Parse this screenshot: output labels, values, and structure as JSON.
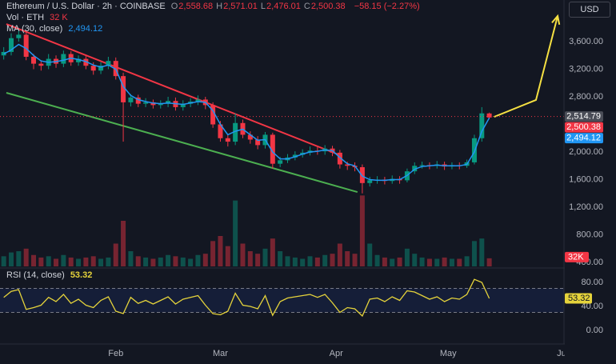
{
  "chart_data": [
    {
      "type": "candlestick",
      "title": "Ethereum / U.S. Dollar · 2h · COINBASE",
      "ohlc_legend": [
        {
          "key": "O",
          "value": "2,558.68"
        },
        {
          "key": "H",
          "value": "2,571.01"
        },
        {
          "key": "L",
          "value": "2,476.01"
        },
        {
          "key": "C",
          "value": "2,500.38"
        }
      ],
      "change": "−58.15 (−2.27%)",
      "currency": "USD",
      "x": [
        2,
        4,
        6,
        8,
        10,
        12,
        14,
        16,
        18,
        20,
        22,
        24,
        26,
        28,
        30,
        32,
        34,
        36,
        38,
        40,
        42,
        44,
        46,
        48,
        50,
        52,
        54,
        56,
        58,
        60,
        62,
        64,
        66,
        68,
        70,
        72,
        74,
        76,
        78,
        80,
        82,
        84,
        86,
        88,
        90,
        92,
        94,
        96,
        98,
        100,
        102,
        104,
        106,
        108,
        110,
        112,
        114,
        116,
        118,
        120,
        122,
        124,
        126,
        128,
        130,
        132
      ],
      "open": [
        3400,
        3450,
        3650,
        3700,
        3380,
        3280,
        3250,
        3350,
        3280,
        3420,
        3300,
        3350,
        3250,
        3180,
        3250,
        3320,
        3100,
        2720,
        2790,
        2700,
        2720,
        2680,
        2700,
        2740,
        2650,
        2700,
        2730,
        2760,
        2680,
        2400,
        2200,
        2150,
        2420,
        2250,
        2180,
        2100,
        2250,
        1830,
        1880,
        1920,
        1960,
        1990,
        2020,
        2010,
        2050,
        1990,
        1820,
        1800,
        1780,
        1550,
        1590,
        1600,
        1580,
        1610,
        1590,
        1720,
        1800,
        1810,
        1800,
        1820,
        1790,
        1810,
        1800,
        1850,
        2200,
        2558.68
      ],
      "high": [
        3520,
        3720,
        3760,
        3740,
        3420,
        3330,
        3420,
        3400,
        3470,
        3460,
        3400,
        3390,
        3300,
        3300,
        3380,
        3370,
        3150,
        2840,
        2830,
        2780,
        2760,
        2750,
        2800,
        2790,
        2750,
        2780,
        2820,
        2800,
        2720,
        2450,
        2260,
        2560,
        2470,
        2300,
        2230,
        2290,
        2280,
        1930,
        1970,
        2010,
        2040,
        2080,
        2070,
        2100,
        2090,
        2030,
        1860,
        1850,
        1820,
        1640,
        1650,
        1640,
        1660,
        1650,
        1760,
        1850,
        1860,
        1850,
        1870,
        1860,
        1850,
        1850,
        1890,
        2250,
        2650,
        2571.01
      ],
      "low": [
        3340,
        3400,
        3600,
        3330,
        3200,
        3180,
        3200,
        3220,
        3230,
        3250,
        3250,
        3200,
        3120,
        3130,
        3200,
        3050,
        2150,
        2660,
        2650,
        2650,
        2630,
        2630,
        2650,
        2600,
        2600,
        2650,
        2680,
        2620,
        2350,
        2150,
        2080,
        2100,
        2200,
        2120,
        2040,
        2050,
        1760,
        1780,
        1840,
        1880,
        1920,
        1950,
        1960,
        1960,
        1940,
        1760,
        1740,
        1720,
        1400,
        1500,
        1540,
        1530,
        1540,
        1540,
        1560,
        1680,
        1760,
        1750,
        1760,
        1740,
        1750,
        1750,
        1770,
        1820,
        2150,
        2476.01
      ],
      "close": [
        3450,
        3650,
        3700,
        3380,
        3280,
        3250,
        3350,
        3280,
        3420,
        3300,
        3350,
        3250,
        3180,
        3250,
        3320,
        3100,
        2720,
        2790,
        2700,
        2720,
        2680,
        2700,
        2740,
        2650,
        2700,
        2730,
        2760,
        2680,
        2400,
        2200,
        2150,
        2420,
        2250,
        2180,
        2100,
        2250,
        1830,
        1880,
        1920,
        1960,
        1990,
        2020,
        2010,
        2050,
        1990,
        1820,
        1800,
        1780,
        1550,
        1590,
        1600,
        1580,
        1610,
        1590,
        1720,
        1800,
        1810,
        1800,
        1820,
        1790,
        1810,
        1800,
        1850,
        2200,
        2560,
        2500.38
      ],
      "up_color": "#089981",
      "down_color": "#f23645",
      "series": [
        {
          "name": "MA (30, close)",
          "color": "#2196f3",
          "legend_value": "2,494.12",
          "values": [
            3420,
            3480,
            3560,
            3500,
            3400,
            3320,
            3300,
            3310,
            3330,
            3360,
            3340,
            3310,
            3260,
            3230,
            3260,
            3200,
            2950,
            2820,
            2760,
            2730,
            2710,
            2700,
            2710,
            2700,
            2690,
            2710,
            2730,
            2720,
            2600,
            2400,
            2250,
            2300,
            2330,
            2250,
            2170,
            2180,
            2000,
            1900,
            1900,
            1930,
            1970,
            2000,
            2010,
            2030,
            2020,
            1920,
            1830,
            1800,
            1650,
            1600,
            1590,
            1590,
            1600,
            1600,
            1660,
            1750,
            1790,
            1800,
            1810,
            1800,
            1800,
            1800,
            1820,
            2000,
            2300,
            2494.12
          ]
        }
      ],
      "volume": {
        "name": "Vol · ETH",
        "legend_value": "32 K",
        "tag": "32K",
        "vlim": [
          0,
          300000
        ],
        "values": [
          40000,
          55000,
          60000,
          70000,
          45000,
          35000,
          40000,
          30000,
          45000,
          35000,
          30000,
          35000,
          40000,
          30000,
          35000,
          90000,
          180000,
          60000,
          40000,
          35000,
          30000,
          35000,
          45000,
          40000,
          35000,
          30000,
          45000,
          50000,
          100000,
          120000,
          80000,
          260000,
          90000,
          60000,
          50000,
          70000,
          110000,
          60000,
          40000,
          35000,
          30000,
          40000,
          35000,
          45000,
          50000,
          90000,
          60000,
          50000,
          280000,
          90000,
          45000,
          35000,
          30000,
          35000,
          70000,
          50000,
          35000,
          30000,
          30000,
          35000,
          30000,
          30000,
          40000,
          100000,
          110000,
          32000
        ]
      },
      "price_tags": [
        {
          "value": 2514.79,
          "label": "2,514.79",
          "color": "#4a4d57"
        },
        {
          "value": 2500.38,
          "label": "2,500.38",
          "color": "#f23645"
        },
        {
          "value": 2494.12,
          "label": "2,494.12",
          "color": "#2196f3"
        }
      ],
      "trendlines": [
        {
          "color": "#f23645",
          "points": [
            [
              2.7,
              3855
            ],
            [
              92.6,
              1942
            ]
          ]
        },
        {
          "color": "#4caf50",
          "points": [
            [
              2.7,
              2858
            ],
            [
              96.7,
              1420
            ]
          ]
        },
        {
          "color": "#f5e042",
          "points": [
            [
              133.3,
              2510
            ],
            [
              144.5,
              2754
            ],
            [
              150.3,
              3971
            ]
          ],
          "arrow": true
        }
      ],
      "xlim": [
        1,
        152
      ],
      "ylim": [
        342,
        4203
      ],
      "yticks": [
        {
          "value": 400,
          "label": "400.00"
        },
        {
          "value": 800,
          "label": "800.00"
        },
        {
          "value": 1200,
          "label": "1,200.00"
        },
        {
          "value": 1600,
          "label": "1,600.00"
        },
        {
          "value": 2000,
          "label": "2,000.00"
        },
        {
          "value": 2800,
          "label": "2,800.00"
        },
        {
          "value": 3200,
          "label": "3,200.00"
        },
        {
          "value": 3600,
          "label": "3,600.00"
        }
      ],
      "grid": false
    },
    {
      "type": "line",
      "x": [
        2,
        4,
        6,
        8,
        10,
        12,
        14,
        16,
        18,
        20,
        22,
        24,
        26,
        28,
        30,
        32,
        34,
        36,
        38,
        40,
        42,
        44,
        46,
        48,
        50,
        52,
        54,
        56,
        58,
        60,
        62,
        64,
        66,
        68,
        70,
        72,
        74,
        76,
        78,
        80,
        82,
        84,
        86,
        88,
        90,
        92,
        94,
        96,
        98,
        100,
        102,
        104,
        106,
        108,
        110,
        112,
        114,
        116,
        118,
        120,
        122,
        124,
        126,
        128,
        130,
        132
      ],
      "series": [
        {
          "name": "RSI (14, close)",
          "color": "#e5d33b",
          "values": [
            55,
            65,
            68,
            35,
            38,
            42,
            55,
            48,
            60,
            45,
            52,
            42,
            38,
            50,
            56,
            32,
            28,
            55,
            45,
            50,
            44,
            50,
            56,
            44,
            52,
            55,
            58,
            42,
            28,
            26,
            32,
            62,
            42,
            40,
            36,
            58,
            25,
            48,
            54,
            56,
            58,
            60,
            55,
            60,
            46,
            30,
            38,
            36,
            24,
            52,
            54,
            48,
            56,
            50,
            66,
            64,
            58,
            52,
            56,
            48,
            54,
            52,
            60,
            85,
            80,
            53.32
          ]
        }
      ],
      "bands": [
        30,
        70
      ],
      "xlim": [
        1,
        152
      ],
      "ylim": [
        -22.7,
        101.3
      ],
      "yticks": [
        {
          "value": 0,
          "label": "0.00"
        },
        {
          "value": 40,
          "label": "40.00"
        },
        {
          "value": 80,
          "label": "80.00"
        }
      ],
      "xticks": [
        {
          "value": 32,
          "label": "Feb"
        },
        {
          "value": 60,
          "label": "Mar"
        },
        {
          "value": 91,
          "label": "Apr"
        },
        {
          "value": 121,
          "label": "May"
        },
        {
          "value": 152,
          "label": "Jun"
        }
      ],
      "grid": false
    }
  ]
}
